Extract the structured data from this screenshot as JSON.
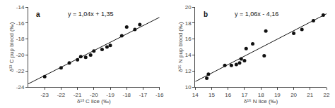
{
  "chart_data": [
    {
      "type": "scatter",
      "xlabel": "δ¹³ C lice (‰)",
      "ylabel": "δ¹³ C pup blood (‰)",
      "annotations": [
        {
          "text": "a"
        },
        {
          "text": "y = 1,04x + 1,35"
        }
      ],
      "series": [
        {
          "type": "scatter",
          "color": "#111111",
          "marker": "circle",
          "x": [
            -23.0,
            -22.0,
            -21.5,
            -21.0,
            -20.8,
            -20.5,
            -20.2,
            -20.0,
            -19.5,
            -19.2,
            -19.0,
            -18.3,
            -18.0,
            -17.5,
            -17.2
          ],
          "values": [
            -22.7,
            -21.6,
            -21.0,
            -20.6,
            -20.2,
            -20.3,
            -20.0,
            -19.5,
            -19.3,
            -19.0,
            -18.8,
            -17.6,
            -16.5,
            -16.8,
            -16.2
          ]
        },
        {
          "type": "line",
          "color": "#111111",
          "line_style": "solid",
          "x": [
            -24,
            -16
          ],
          "values": [
            -23.61,
            -15.29
          ]
        }
      ],
      "xlim": [
        -24,
        -16
      ],
      "ylim": [
        -24,
        -14
      ],
      "xticks": [
        -23,
        -22,
        -21,
        -20,
        -19,
        -18,
        -17,
        -16
      ],
      "yticks": [
        -24,
        -22,
        -20,
        -18,
        -16,
        -14
      ],
      "grid": false
    },
    {
      "type": "scatter",
      "xlabel": "δ¹⁵ N lice (‰)",
      "ylabel": "δ¹⁵ N pup blood (‰)",
      "annotations": [
        {
          "text": "b"
        },
        {
          "text": "y = 1,06x - 4,16"
        }
      ],
      "series": [
        {
          "type": "scatter",
          "color": "#111111",
          "marker": "circle",
          "x": [
            14.7,
            14.8,
            15.8,
            16.2,
            16.5,
            16.7,
            16.8,
            17.0,
            17.1,
            17.5,
            18.2,
            18.3,
            20.0,
            20.5,
            21.2,
            21.8
          ],
          "values": [
            11.1,
            11.6,
            12.7,
            12.7,
            12.8,
            13.0,
            13.5,
            13.3,
            14.8,
            15.4,
            13.9,
            17.0,
            16.7,
            17.2,
            18.3,
            19.0
          ]
        },
        {
          "type": "line",
          "color": "#111111",
          "line_style": "solid",
          "x": [
            14,
            22
          ],
          "values": [
            10.68,
            19.16
          ]
        }
      ],
      "xlim": [
        14,
        22
      ],
      "ylim": [
        10,
        20
      ],
      "xticks": [
        14,
        15,
        16,
        17,
        18,
        19,
        20,
        21,
        22
      ],
      "yticks": [
        10,
        12,
        14,
        16,
        18,
        20
      ],
      "grid": false
    }
  ]
}
